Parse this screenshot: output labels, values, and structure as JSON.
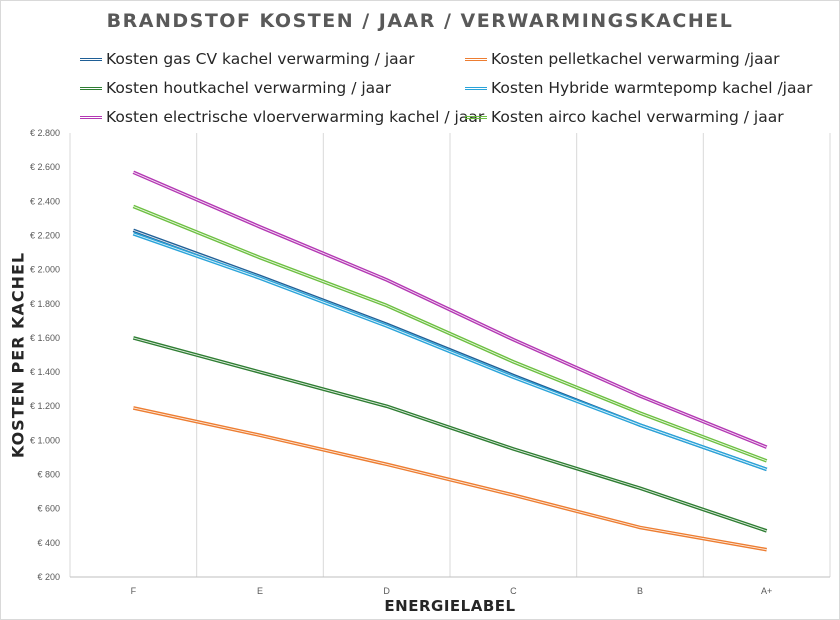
{
  "chart_data": {
    "type": "line",
    "title": "BRANDSTOF KOSTEN / JAAR / VERWARMINGSKACHEL",
    "xlabel": "ENERGIELABEL",
    "ylabel": "KOSTEN PER KACHEL",
    "categories": [
      "F",
      "E",
      "D",
      "C",
      "B",
      "A+"
    ],
    "ylim": [
      200,
      2800
    ],
    "yticks": [
      200,
      400,
      600,
      800,
      1000,
      1200,
      1400,
      1600,
      1800,
      2000,
      2200,
      2400,
      2600,
      2800
    ],
    "ytick_labels": [
      "€ 200",
      "€ 400",
      "€ 600",
      "€ 800",
      "€ 1.000",
      "€ 1.200",
      "€ 1.400",
      "€ 1.600",
      "€ 1.800",
      "€ 2.000",
      "€ 2.200",
      "€ 2.400",
      "€ 2.600",
      "€ 2.800"
    ],
    "grid": "vertical",
    "legend_position": "top",
    "series": [
      {
        "name": "Kosten gas CV kachel verwarming / jaar",
        "color": "#1f5f96",
        "values": [
          2230,
          1960,
          1680,
          1380,
          1090,
          830
        ]
      },
      {
        "name": "Kosten pelletkachel verwarming  /jaar",
        "color": "#ed7d31",
        "values": [
          1190,
          1030,
          860,
          680,
          490,
          360
        ]
      },
      {
        "name": "Kosten houtkachel verwarming / jaar",
        "color": "#2e7d32",
        "values": [
          1600,
          1400,
          1200,
          950,
          720,
          470
        ]
      },
      {
        "name": "Kosten Hybride warmtepomp kachel /jaar",
        "color": "#29a3d9",
        "values": [
          2210,
          1950,
          1670,
          1370,
          1090,
          830
        ]
      },
      {
        "name": "Kosten electrische vloerverwarming kachel / jaar",
        "color": "#b337b3",
        "values": [
          2570,
          2250,
          1940,
          1590,
          1260,
          960
        ]
      },
      {
        "name": "Kosten airco kachel verwarming / jaar",
        "color": "#6cbf40",
        "values": [
          2370,
          2070,
          1790,
          1460,
          1160,
          880
        ]
      }
    ]
  }
}
